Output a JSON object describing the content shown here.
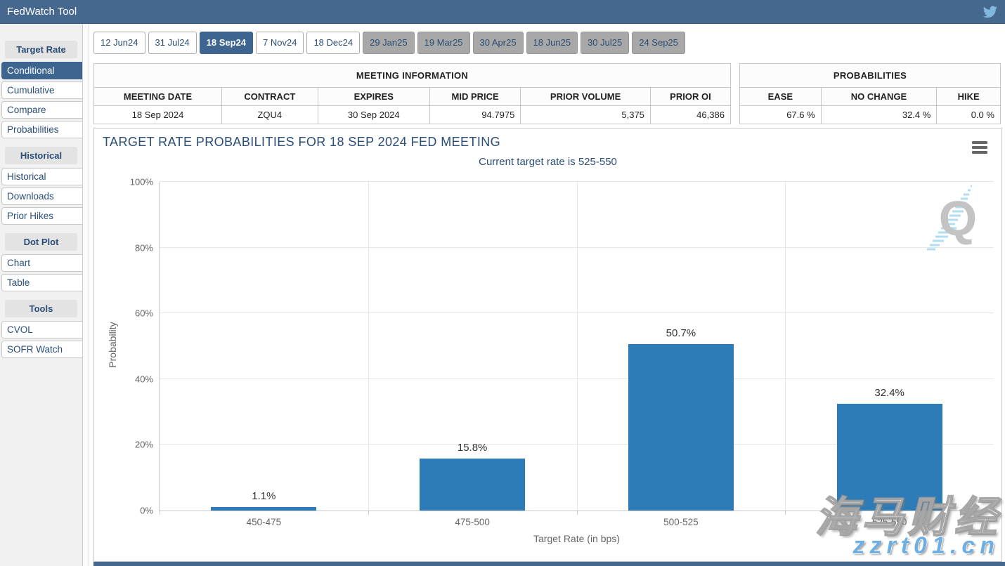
{
  "header": {
    "title": "FedWatch Tool",
    "icon": "twitter-icon"
  },
  "sidebar": {
    "sections": [
      {
        "label": "Target Rate",
        "items": [
          {
            "label": "Conditional",
            "selected": true
          },
          {
            "label": "Cumulative"
          },
          {
            "label": "Compare"
          },
          {
            "label": "Probabilities"
          }
        ]
      },
      {
        "label": "Historical",
        "items": [
          {
            "label": "Historical"
          },
          {
            "label": "Downloads"
          },
          {
            "label": "Prior Hikes"
          }
        ]
      },
      {
        "label": "Dot Plot",
        "items": [
          {
            "label": "Chart"
          },
          {
            "label": "Table"
          }
        ]
      },
      {
        "label": "Tools",
        "items": [
          {
            "label": "CVOL"
          },
          {
            "label": "SOFR Watch"
          }
        ]
      }
    ]
  },
  "tabs": [
    {
      "label": "12 Jun24",
      "state": "default"
    },
    {
      "label": "31 Jul24",
      "state": "default"
    },
    {
      "label": "18 Sep24",
      "state": "active"
    },
    {
      "label": "7 Nov24",
      "state": "default"
    },
    {
      "label": "18 Dec24",
      "state": "default"
    },
    {
      "label": "29 Jan25",
      "state": "gray"
    },
    {
      "label": "19 Mar25",
      "state": "gray"
    },
    {
      "label": "30 Apr25",
      "state": "gray"
    },
    {
      "label": "18 Jun25",
      "state": "gray"
    },
    {
      "label": "30 Jul25",
      "state": "gray"
    },
    {
      "label": "24 Sep25",
      "state": "gray"
    }
  ],
  "meeting_info": {
    "title": "MEETING INFORMATION",
    "columns": [
      "MEETING DATE",
      "CONTRACT",
      "EXPIRES",
      "MID PRICE",
      "PRIOR VOLUME",
      "PRIOR OI"
    ],
    "values": [
      "18 Sep 2024",
      "ZQU4",
      "30 Sep 2024",
      "94.7975",
      "5,375",
      "46,386"
    ]
  },
  "probabilities": {
    "title": "PROBABILITIES",
    "columns": [
      "EASE",
      "NO CHANGE",
      "HIKE"
    ],
    "values": [
      "67.6 %",
      "32.4 %",
      "0.0 %"
    ]
  },
  "chart_data": {
    "type": "bar",
    "title": "TARGET RATE PROBABILITIES FOR 18 SEP 2024 FED MEETING",
    "subtitle": "Current target rate is 525-550",
    "categories": [
      "450-475",
      "475-500",
      "500-525",
      "525-550"
    ],
    "values": [
      1.1,
      15.8,
      50.7,
      32.4
    ],
    "data_labels": [
      "1.1%",
      "15.8%",
      "50.7%",
      "32.4%"
    ],
    "xlabel": "Target Rate (in bps)",
    "ylabel": "Probability",
    "ylim": [
      0,
      100
    ],
    "ytick_values": [
      0,
      20,
      40,
      60,
      80,
      100
    ],
    "ytick_labels": [
      "0%",
      "20%",
      "40%",
      "60%",
      "80%",
      "100%"
    ],
    "grid": true,
    "legend": "none",
    "bar_color": "#2D7CB8"
  },
  "icons": {
    "menu": "hamburger-menu-icon",
    "q_logo_letter": "Q"
  },
  "watermarks": {
    "site_name": "海马财经",
    "site_url": "zzrt01.cn"
  },
  "colors": {
    "header_bg": "#47688E",
    "selected_bg": "#3D6590",
    "bar": "#2D7CB8",
    "nav_text": "#2A4E79",
    "gray_tab_bg": "#A8A8A8",
    "watermark_blue": "#6FAEE0"
  }
}
